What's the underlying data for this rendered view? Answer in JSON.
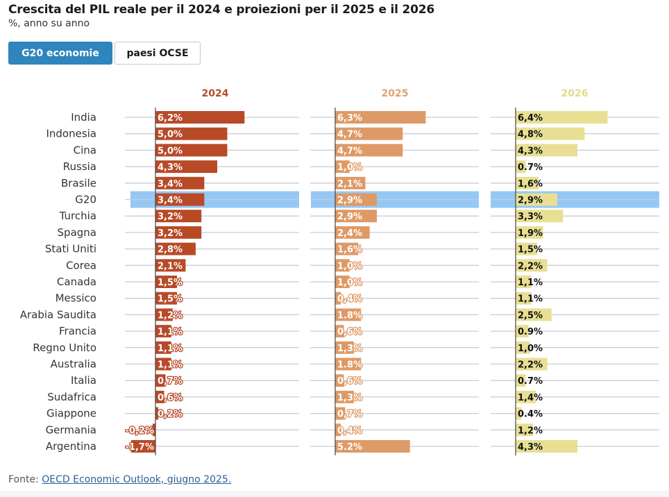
{
  "header": {
    "title": "Crescita del PIL reale per il 2024 e proiezioni per il 2025 e il 2026",
    "subtitle": "%, anno su anno"
  },
  "tabs": [
    {
      "label": "G20 economie",
      "active": true
    },
    {
      "label": "paesi OCSE",
      "active": false
    }
  ],
  "footer": {
    "prefix": "Fonte: ",
    "link_text": "OECD Economic Outlook, giugno 2025."
  },
  "colors": {
    "2024": "#b84a28",
    "2025": "#de9a66",
    "2026": "#e8df93",
    "header_2024": "#b84a28",
    "header_2025": "#e0a06e",
    "header_2026": "#e5d98c",
    "highlight": "#95c8f5",
    "gridline": "#c8ccd8"
  },
  "chart_data": {
    "type": "bar",
    "categories": [
      "India",
      "Indonesia",
      "Cina",
      "Russia",
      "Brasile",
      "G20",
      "Turchia",
      "Spagna",
      "Stati Uniti",
      "Corea",
      "Canada",
      "Messico",
      "Arabia Saudita",
      "Francia",
      "Regno Unito",
      "Australia",
      "Italia",
      "Sudafrica",
      "Giappone",
      "Germania",
      "Argentina"
    ],
    "highlight_category": "G20",
    "series": [
      {
        "name": "2024",
        "values": [
          6.2,
          5.0,
          5.0,
          4.3,
          3.4,
          3.4,
          3.2,
          3.2,
          2.8,
          2.1,
          1.5,
          1.5,
          1.2,
          1.1,
          1.1,
          1.1,
          0.7,
          0.6,
          0.2,
          -0.2,
          -1.7
        ],
        "labels": [
          "6,2%",
          "5,0%",
          "5,0%",
          "4,3%",
          "3,4%",
          "3,4%",
          "3,2%",
          "3,2%",
          "2,8%",
          "2,1%",
          "1,5%",
          "1,5%",
          "1,2%",
          "1,1%",
          "1,1%",
          "1,1%",
          "0,7%",
          "0,6%",
          "0,2%",
          "-0,2%",
          "-1,7%"
        ]
      },
      {
        "name": "2025",
        "values": [
          6.3,
          4.7,
          4.7,
          1.0,
          2.1,
          2.9,
          2.9,
          2.4,
          1.6,
          1.0,
          1.0,
          0.4,
          1.8,
          0.6,
          1.3,
          1.8,
          0.6,
          1.3,
          0.7,
          0.4,
          5.2
        ],
        "labels": [
          "6,3%",
          "4,7%",
          "4,7%",
          "1,0%",
          "2,1%",
          "2,9%",
          "2,9%",
          "2,4%",
          "1,6%",
          "1,0%",
          "1,0%",
          "0,4%",
          "1.8%",
          "0,6%",
          "1,3%",
          "1.8%",
          "0,6%",
          "1,3%",
          "0,7%",
          "0,4%",
          "5.2%"
        ]
      },
      {
        "name": "2026",
        "values": [
          6.4,
          4.8,
          4.3,
          0.7,
          1.6,
          2.9,
          3.3,
          1.9,
          1.5,
          2.2,
          1.1,
          1.1,
          2.5,
          0.9,
          1.0,
          2.2,
          0.7,
          1.4,
          0.4,
          1.2,
          4.3
        ],
        "labels": [
          "6,4%",
          "4,8%",
          "4,3%",
          "0.7%",
          "1,6%",
          "2,9%",
          "3,3%",
          "1,9%",
          "1,5%",
          "2,2%",
          "1,1%",
          "1,1%",
          "2,5%",
          "0.9%",
          "1,0%",
          "2,2%",
          "0.7%",
          "1,4%",
          "0.4%",
          "1,2%",
          "4,3%"
        ]
      }
    ]
  }
}
